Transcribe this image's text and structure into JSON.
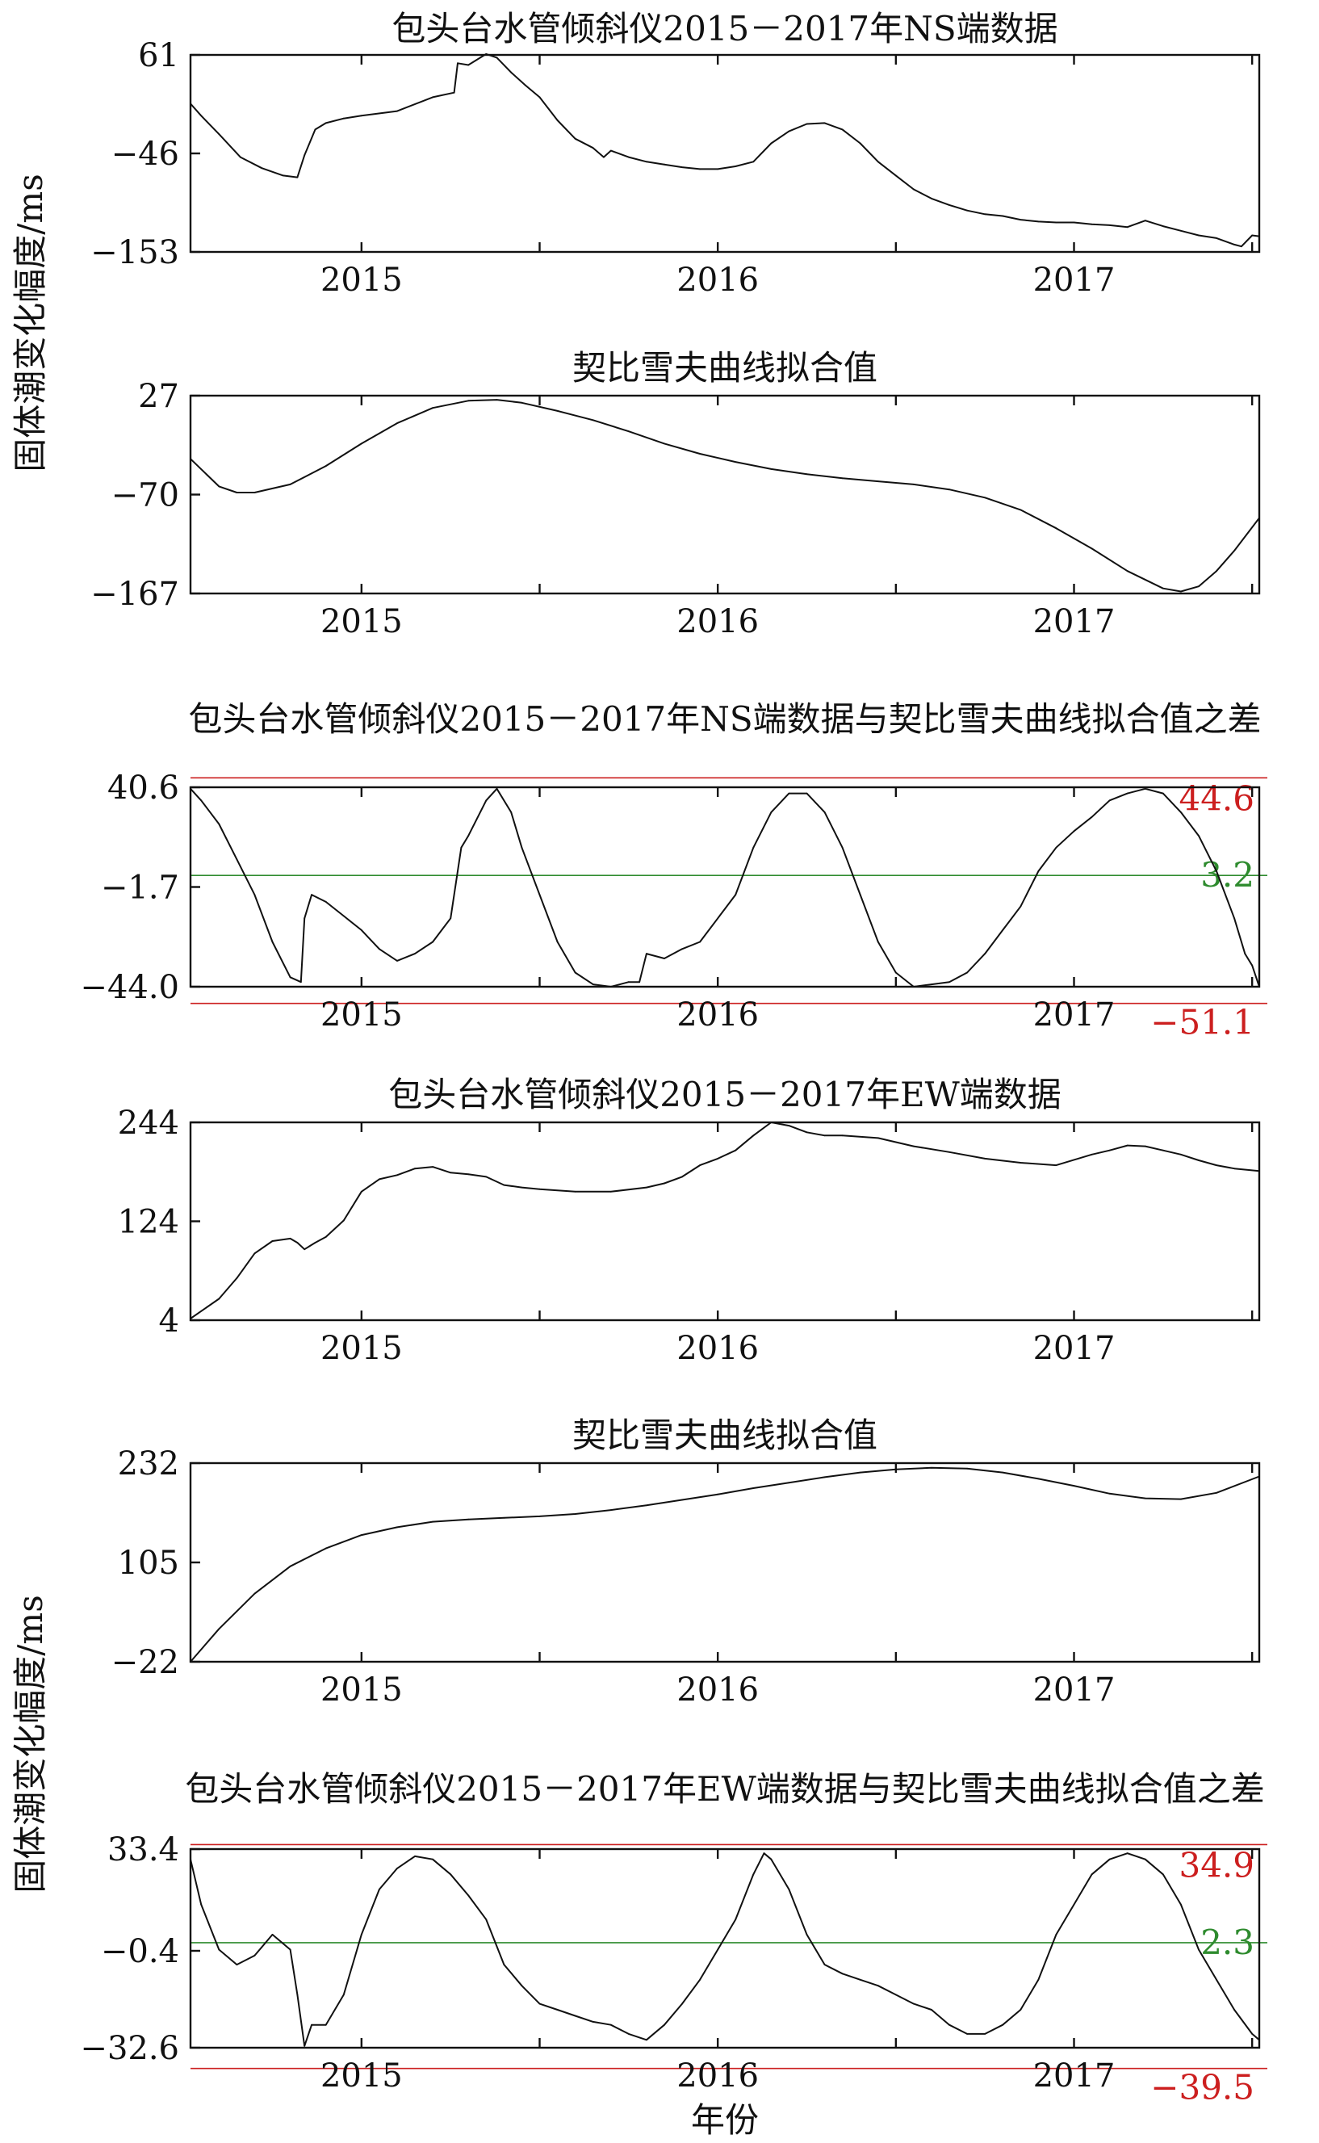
{
  "figure": {
    "ylabel_upper": "固体潮变化幅度/ms",
    "ylabel_lower": "固体潮变化幅度/ms",
    "xlabel": "年份"
  },
  "colors": {
    "data": "#111111",
    "bound": "#cc1f1f",
    "mean": "#2e8b2e"
  },
  "chart_data": [
    {
      "type": "line",
      "title": "包头台水管倾斜仪2015－2017年NS端数据",
      "xlim": [
        2014.52,
        2017.52
      ],
      "xticks": [
        2015,
        2016,
        2017
      ],
      "xticklabels": [
        "2015",
        "2016",
        "2017"
      ],
      "ylim": [
        -153,
        61
      ],
      "yticks": [
        61,
        -46,
        -153
      ],
      "yticklabels": [
        "61",
        "−46",
        "−153"
      ],
      "series": [
        {
          "x": [
            2014.52,
            2014.55,
            2014.6,
            2014.66,
            2014.72,
            2014.78,
            2014.82,
            2014.84,
            2014.87,
            2014.9,
            2014.95,
            2015.0,
            2015.1,
            2015.2,
            2015.26,
            2015.27,
            2015.3,
            2015.35,
            2015.38,
            2015.42,
            2015.46,
            2015.5,
            2015.55,
            2015.6,
            2015.65,
            2015.68,
            2015.7,
            2015.75,
            2015.8,
            2015.85,
            2015.9,
            2015.95,
            2016.0,
            2016.05,
            2016.1,
            2016.15,
            2016.2,
            2016.25,
            2016.3,
            2016.35,
            2016.4,
            2016.45,
            2016.5,
            2016.55,
            2016.6,
            2016.65,
            2016.7,
            2016.75,
            2016.8,
            2016.85,
            2016.9,
            2016.95,
            2017.0,
            2017.05,
            2017.1,
            2017.15,
            2017.2,
            2017.25,
            2017.3,
            2017.35,
            2017.4,
            2017.45,
            2017.47,
            2017.5,
            2017.52
          ],
          "y": [
            8,
            -5,
            -25,
            -50,
            -62,
            -70,
            -72,
            -48,
            -20,
            -13,
            -8,
            -5,
            0,
            15,
            20,
            52,
            50,
            62,
            58,
            42,
            28,
            15,
            -10,
            -30,
            -40,
            -50,
            -43,
            -50,
            -55,
            -58,
            -61,
            -63,
            -63,
            -60,
            -55,
            -35,
            -22,
            -14,
            -13,
            -20,
            -35,
            -55,
            -70,
            -85,
            -95,
            -102,
            -108,
            -112,
            -114,
            -118,
            -120,
            -121,
            -121,
            -123,
            -124,
            -126,
            -119,
            -125,
            -130,
            -135,
            -138,
            -145,
            -147,
            -135,
            -136
          ]
        }
      ]
    },
    {
      "type": "line",
      "title": "契比雪夫曲线拟合值",
      "xlim": [
        2014.52,
        2017.52
      ],
      "xticks": [
        2015,
        2016,
        2017
      ],
      "xticklabels": [
        "2015",
        "2016",
        "2017"
      ],
      "ylim": [
        -167,
        27
      ],
      "yticks": [
        27,
        -70,
        -167
      ],
      "yticklabels": [
        "27",
        "−70",
        "−167"
      ],
      "series": [
        {
          "x": [
            2014.52,
            2014.6,
            2014.65,
            2014.7,
            2014.8,
            2014.9,
            2015.0,
            2015.1,
            2015.2,
            2015.3,
            2015.38,
            2015.45,
            2015.55,
            2015.65,
            2015.75,
            2015.85,
            2015.95,
            2016.05,
            2016.15,
            2016.25,
            2016.35,
            2016.45,
            2016.55,
            2016.65,
            2016.75,
            2016.85,
            2016.95,
            2017.05,
            2017.15,
            2017.25,
            2017.3,
            2017.35,
            2017.4,
            2017.45,
            2017.52
          ],
          "y": [
            -35,
            -62,
            -68,
            -68,
            -60,
            -42,
            -20,
            0,
            15,
            22,
            23,
            20,
            12,
            3,
            -8,
            -20,
            -30,
            -38,
            -45,
            -50,
            -54,
            -57,
            -60,
            -65,
            -73,
            -85,
            -103,
            -123,
            -145,
            -162,
            -165,
            -160,
            -145,
            -125,
            -93
          ]
        }
      ]
    },
    {
      "type": "line",
      "title": "包头台水管倾斜仪2015－2017年NS端数据与契比雪夫曲线拟合值之差",
      "xlim": [
        2014.52,
        2017.52
      ],
      "xticks": [
        2015,
        2016,
        2017
      ],
      "xticklabels": [
        "2015",
        "2016",
        "2017"
      ],
      "ylim": [
        -44.0,
        40.6
      ],
      "yticks": [
        40.6,
        -1.7,
        -44.0
      ],
      "yticklabels": [
        "40.6",
        "−1.7",
        "−44.0"
      ],
      "reference_lines": [
        {
          "value": 44.6,
          "label": "44.6",
          "style": "upper"
        },
        {
          "value": 3.2,
          "label": "3.2",
          "style": "mean"
        },
        {
          "value": -51.1,
          "label": "−51.1",
          "style": "lower"
        }
      ],
      "series": [
        {
          "x": [
            2014.52,
            2014.55,
            2014.6,
            2014.65,
            2014.7,
            2014.75,
            2014.8,
            2014.83,
            2014.84,
            2014.86,
            2014.9,
            2014.95,
            2015.0,
            2015.05,
            2015.1,
            2015.15,
            2015.2,
            2015.25,
            2015.28,
            2015.3,
            2015.35,
            2015.38,
            2015.42,
            2015.45,
            2015.5,
            2015.55,
            2015.6,
            2015.65,
            2015.7,
            2015.75,
            2015.78,
            2015.8,
            2015.85,
            2015.9,
            2015.95,
            2016.0,
            2016.05,
            2016.1,
            2016.15,
            2016.2,
            2016.25,
            2016.3,
            2016.35,
            2016.4,
            2016.45,
            2016.5,
            2016.55,
            2016.6,
            2016.65,
            2016.7,
            2016.75,
            2016.8,
            2016.85,
            2016.9,
            2016.95,
            2017.0,
            2017.05,
            2017.1,
            2017.15,
            2017.2,
            2017.25,
            2017.3,
            2017.35,
            2017.4,
            2017.45,
            2017.48,
            2017.5,
            2017.52
          ],
          "y": [
            40,
            35,
            25,
            10,
            -5,
            -25,
            -40,
            -42,
            -15,
            -5,
            -8,
            -14,
            -20,
            -28,
            -33,
            -30,
            -25,
            -15,
            15,
            20,
            35,
            40,
            30,
            15,
            -5,
            -25,
            -38,
            -43,
            -44,
            -42,
            -42,
            -30,
            -32,
            -28,
            -25,
            -15,
            -5,
            15,
            30,
            38,
            38,
            30,
            15,
            -5,
            -25,
            -38,
            -44,
            -43,
            -42,
            -38,
            -30,
            -20,
            -10,
            5,
            15,
            22,
            28,
            35,
            38,
            40,
            38,
            30,
            20,
            5,
            -15,
            -30,
            -35,
            -44
          ]
        }
      ]
    },
    {
      "type": "line",
      "title": "包头台水管倾斜仪2015－2017年EW端数据",
      "xlim": [
        2014.52,
        2017.52
      ],
      "xticks": [
        2015,
        2016,
        2017
      ],
      "xticklabels": [
        "2015",
        "2016",
        "2017"
      ],
      "ylim": [
        4,
        244
      ],
      "yticks": [
        244,
        124,
        4
      ],
      "yticklabels": [
        "244",
        "124",
        "4"
      ],
      "series": [
        {
          "x": [
            2014.52,
            2014.55,
            2014.6,
            2014.65,
            2014.7,
            2014.75,
            2014.8,
            2014.82,
            2014.84,
            2014.87,
            2014.9,
            2014.95,
            2015.0,
            2015.05,
            2015.1,
            2015.15,
            2015.2,
            2015.25,
            2015.3,
            2015.35,
            2015.4,
            2015.45,
            2015.5,
            2015.6,
            2015.7,
            2015.8,
            2015.85,
            2015.9,
            2015.95,
            2016.0,
            2016.05,
            2016.1,
            2016.15,
            2016.2,
            2016.25,
            2016.3,
            2016.35,
            2016.45,
            2016.55,
            2016.65,
            2016.75,
            2016.85,
            2016.95,
            2017.05,
            2017.1,
            2017.15,
            2017.2,
            2017.25,
            2017.3,
            2017.35,
            2017.4,
            2017.45,
            2017.52
          ],
          "y": [
            6,
            15,
            30,
            55,
            85,
            100,
            103,
            98,
            90,
            98,
            105,
            125,
            160,
            175,
            180,
            188,
            190,
            183,
            181,
            178,
            168,
            165,
            163,
            160,
            160,
            165,
            170,
            178,
            192,
            200,
            210,
            228,
            244,
            240,
            232,
            228,
            228,
            225,
            215,
            208,
            200,
            195,
            192,
            205,
            210,
            216,
            215,
            210,
            205,
            198,
            192,
            188,
            185
          ]
        }
      ]
    },
    {
      "type": "line",
      "title": "契比雪夫曲线拟合值",
      "xlim": [
        2014.52,
        2017.52
      ],
      "xticks": [
        2015,
        2016,
        2017
      ],
      "xticklabels": [
        "2015",
        "2016",
        "2017"
      ],
      "ylim": [
        -22,
        232
      ],
      "yticks": [
        232,
        105,
        -22
      ],
      "yticklabels": [
        "232",
        "105",
        "−22"
      ],
      "series": [
        {
          "x": [
            2014.52,
            2014.6,
            2014.7,
            2014.8,
            2014.9,
            2015.0,
            2015.1,
            2015.2,
            2015.3,
            2015.4,
            2015.5,
            2015.6,
            2015.7,
            2015.8,
            2015.9,
            2016.0,
            2016.1,
            2016.2,
            2016.3,
            2016.4,
            2016.5,
            2016.6,
            2016.7,
            2016.8,
            2016.9,
            2017.0,
            2017.1,
            2017.2,
            2017.3,
            2017.4,
            2017.52
          ],
          "y": [
            -22,
            20,
            65,
            100,
            123,
            140,
            150,
            157,
            160,
            162,
            164,
            167,
            172,
            178,
            185,
            192,
            200,
            207,
            214,
            220,
            224,
            226,
            225,
            220,
            212,
            203,
            193,
            187,
            186,
            194,
            215
          ]
        }
      ]
    },
    {
      "type": "line",
      "title": "包头台水管倾斜仪2015－2017年EW端数据与契比雪夫曲线拟合值之差",
      "xlim": [
        2014.52,
        2017.52
      ],
      "xticks": [
        2015,
        2016,
        2017
      ],
      "xticklabels": [
        "2015",
        "2016",
        "2017"
      ],
      "ylim": [
        -32.6,
        33.4
      ],
      "yticks": [
        33.4,
        -0.4,
        -32.6
      ],
      "yticklabels": [
        "33.4",
        "−0.4",
        "−32.6"
      ],
      "reference_lines": [
        {
          "value": 34.9,
          "label": "34.9",
          "style": "upper"
        },
        {
          "value": 2.3,
          "label": "2.3",
          "style": "mean"
        },
        {
          "value": -39.5,
          "label": "−39.5",
          "style": "lower"
        }
      ],
      "series": [
        {
          "x": [
            2014.52,
            2014.55,
            2014.6,
            2014.65,
            2014.7,
            2014.75,
            2014.8,
            2014.82,
            2014.84,
            2014.86,
            2014.9,
            2014.95,
            2015.0,
            2015.05,
            2015.1,
            2015.15,
            2015.2,
            2015.25,
            2015.3,
            2015.35,
            2015.4,
            2015.45,
            2015.5,
            2015.55,
            2015.6,
            2015.65,
            2015.7,
            2015.75,
            2015.8,
            2015.85,
            2015.9,
            2015.95,
            2016.0,
            2016.05,
            2016.1,
            2016.13,
            2016.15,
            2016.2,
            2016.25,
            2016.3,
            2016.35,
            2016.4,
            2016.45,
            2016.5,
            2016.55,
            2016.6,
            2016.65,
            2016.7,
            2016.75,
            2016.8,
            2016.85,
            2016.9,
            2016.95,
            2017.0,
            2017.05,
            2017.1,
            2017.15,
            2017.2,
            2017.25,
            2017.3,
            2017.35,
            2017.4,
            2017.45,
            2017.5,
            2017.52
          ],
          "y": [
            30,
            15,
            0,
            -5,
            -2,
            5,
            0,
            -15,
            -32,
            -25,
            -25,
            -15,
            5,
            20,
            27,
            31,
            30,
            25,
            18,
            10,
            -5,
            -12,
            -18,
            -20,
            -22,
            -24,
            -25,
            -28,
            -30,
            -25,
            -18,
            -10,
            0,
            10,
            25,
            32,
            30,
            20,
            5,
            -5,
            -8,
            -10,
            -12,
            -15,
            -18,
            -20,
            -25,
            -28,
            -28,
            -25,
            -20,
            -10,
            5,
            15,
            25,
            30,
            32,
            30,
            25,
            15,
            0,
            -10,
            -20,
            -28,
            -30
          ]
        }
      ]
    }
  ]
}
